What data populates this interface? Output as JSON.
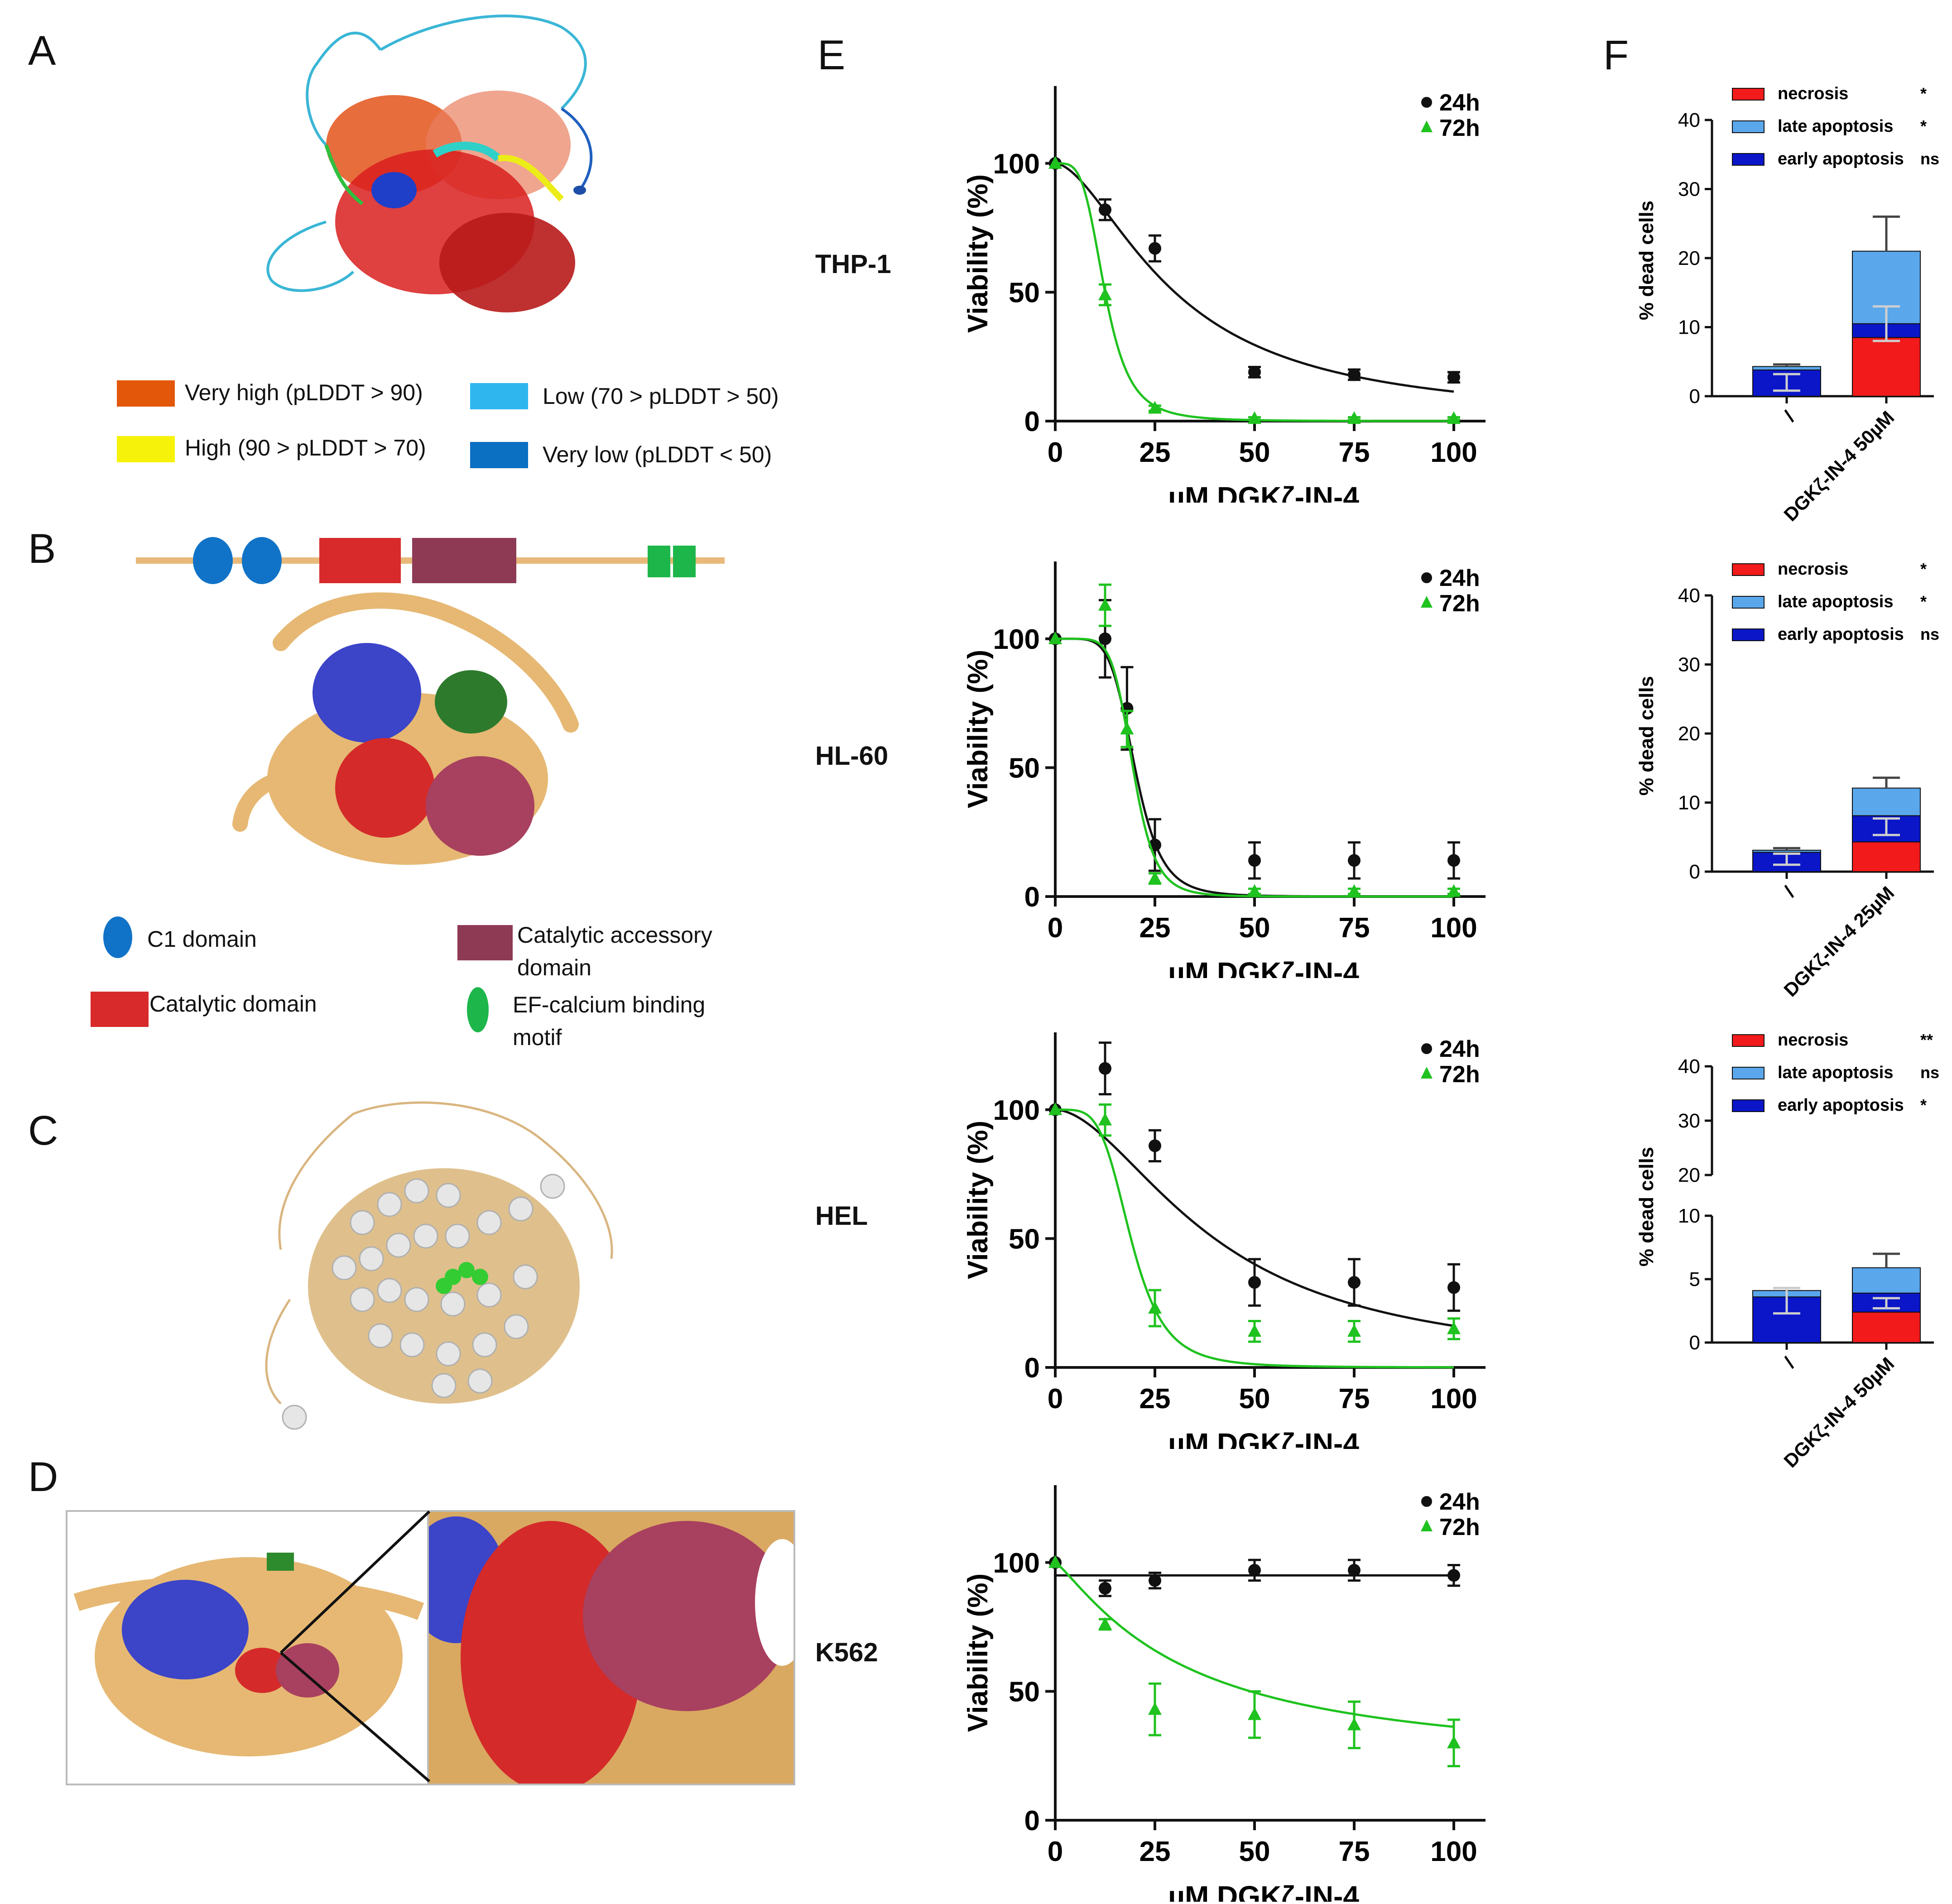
{
  "panels": {
    "A": "A",
    "B": "B",
    "C": "C",
    "D": "D",
    "E": "E",
    "F": "F"
  },
  "plddt_legend": [
    {
      "label": "Very high (pLDDT > 90)",
      "color": "#e2570a"
    },
    {
      "label": "High (90 > pLDDT > 70)",
      "color": "#f7f20a"
    },
    {
      "label": "Low (70 > pLDDT > 50)",
      "color": "#2fb6ef"
    },
    {
      "label": "Very low (pLDDT < 50)",
      "color": "#0b6fc2"
    }
  ],
  "domain_legend": [
    {
      "label": "C1 domain",
      "color": "#1173c7",
      "shape": "ellipse"
    },
    {
      "label": "Catalytic domain",
      "color": "#d82a2a",
      "shape": "rect"
    },
    {
      "label": "Catalytic accessory domain",
      "line1": "Catalytic accessory",
      "line2": "domain",
      "color": "#8e3a55",
      "shape": "rect"
    },
    {
      "label": "EF-calcium binding motif",
      "line1": "EF-calcium binding",
      "line2": "motif",
      "color": "#1db64a",
      "shape": "ellipse"
    }
  ],
  "colors": {
    "series_24h": "#111111",
    "series_72h": "#1fc21f",
    "necrosis": "#f21a1a",
    "late_apoptosis": "#5aa7ec",
    "early_apoptosis": "#0a16c8",
    "tan": "#e6b873",
    "blue_domain": "#3c44c8",
    "red_domain": "#d42a2a",
    "maroon_domain": "#a8405f",
    "green_domain": "#2d8a2d"
  },
  "viability_axis": {
    "ylabel": "Viability (%)",
    "xlabel": "µM DGKζ-IN-4",
    "xticks": [
      "0",
      "25",
      "50",
      "75",
      "100"
    ],
    "yticks": [
      "0",
      "50",
      "100"
    ]
  },
  "chart_data": [
    {
      "type": "line",
      "cell_line": "THP-1",
      "xlabel": "µM DGKζ-IN-4",
      "ylabel": "Viability (%)",
      "xlim": [
        0,
        100
      ],
      "ylim": [
        0,
        130
      ],
      "series": [
        {
          "name": "24h",
          "marker": "circle",
          "x": [
            0,
            12.5,
            25,
            50,
            75,
            100
          ],
          "y": [
            100,
            82,
            67,
            19,
            18,
            17
          ],
          "err": [
            0,
            4,
            5,
            2,
            2,
            2
          ],
          "curve": {
            "ic50": 30,
            "hill": 1.7,
            "bottom": 0
          }
        },
        {
          "name": "72h",
          "marker": "triangle",
          "x": [
            0,
            12.5,
            25,
            50,
            75,
            100
          ],
          "y": [
            100,
            49,
            5,
            1,
            1,
            1
          ],
          "err": [
            0,
            4,
            1,
            0.5,
            0.5,
            0.5
          ],
          "curve": {
            "ic50": 12.5,
            "hill": 4,
            "bottom": 0
          }
        }
      ]
    },
    {
      "type": "line",
      "cell_line": "HL-60",
      "xlabel": "µM DGKζ-IN-4",
      "ylabel": "Viability (%)",
      "xlim": [
        0,
        100
      ],
      "ylim": [
        0,
        130
      ],
      "series": [
        {
          "name": "24h",
          "marker": "circle",
          "x": [
            0,
            12.5,
            18,
            25,
            50,
            75,
            100
          ],
          "y": [
            100,
            100,
            73,
            20,
            14,
            14,
            14
          ],
          "err": [
            0,
            15,
            16,
            10,
            7,
            7,
            7
          ],
          "curve": {
            "ic50": 20,
            "hill": 6,
            "bottom": 0
          }
        },
        {
          "name": "72h",
          "marker": "triangle",
          "x": [
            0,
            12.5,
            18,
            25,
            50,
            75,
            100
          ],
          "y": [
            100,
            113,
            65,
            7,
            2,
            2,
            2
          ],
          "err": [
            0,
            8,
            7,
            2,
            1,
            1,
            1
          ],
          "curve": {
            "ic50": 19.5,
            "hill": 7,
            "bottom": 0
          }
        }
      ]
    },
    {
      "type": "line",
      "cell_line": "HEL",
      "xlabel": "µM DGKζ-IN-4",
      "ylabel": "Viability (%)",
      "xlim": [
        0,
        100
      ],
      "ylim": [
        0,
        130
      ],
      "series": [
        {
          "name": "24h",
          "marker": "circle",
          "x": [
            0,
            12.5,
            25,
            50,
            75,
            100
          ],
          "y": [
            100,
            116,
            86,
            33,
            33,
            31
          ],
          "err": [
            0,
            10,
            6,
            9,
            9,
            9
          ],
          "curve": {
            "ic50": 40,
            "hill": 1.8,
            "bottom": 0
          }
        },
        {
          "name": "72h",
          "marker": "triangle",
          "x": [
            0,
            12.5,
            25,
            50,
            75,
            100
          ],
          "y": [
            100,
            96,
            23,
            14,
            14,
            15
          ],
          "err": [
            0,
            6,
            7,
            4,
            4,
            4
          ],
          "curve": {
            "ic50": 19,
            "hill": 4.5,
            "bottom": 0
          }
        }
      ]
    },
    {
      "type": "line",
      "cell_line": "K562",
      "xlabel": "µM DGKζ-IN-4",
      "ylabel": "Viability (%)",
      "xlim": [
        0,
        100
      ],
      "ylim": [
        0,
        130
      ],
      "series": [
        {
          "name": "24h",
          "marker": "circle",
          "x": [
            0,
            12.5,
            25,
            50,
            75,
            100
          ],
          "y": [
            100,
            90,
            93,
            97,
            97,
            95
          ],
          "err": [
            0,
            3,
            3,
            4,
            4,
            4
          ],
          "curve": {
            "flat": 95
          }
        },
        {
          "name": "72h",
          "marker": "triangle",
          "x": [
            0,
            12.5,
            25,
            50,
            75,
            100
          ],
          "y": [
            100,
            76,
            43,
            41,
            37,
            30
          ],
          "err": [
            0,
            2,
            10,
            9,
            9,
            9
          ],
          "curve": {
            "ic50": 32,
            "hill": 1.2,
            "bottom": 20
          }
        }
      ]
    },
    {
      "type": "bar",
      "stacked": true,
      "ylabel": "% dead cells",
      "ylim": [
        0,
        40
      ],
      "yticks": [
        "0",
        "10",
        "20",
        "30",
        "40"
      ],
      "categories": [
        "/",
        "DGKζ-IN-4 50µM"
      ],
      "legend": [
        {
          "name": "necrosis",
          "sig": "*"
        },
        {
          "name": "late apoptosis",
          "sig": "*"
        },
        {
          "name": "early apoptosis",
          "sig": "ns"
        }
      ],
      "series": [
        {
          "name": "necrosis",
          "values": [
            0,
            8.5
          ]
        },
        {
          "name": "early apoptosis",
          "values": [
            3.8,
            2
          ]
        },
        {
          "name": "late apoptosis",
          "values": [
            0.5,
            10.5
          ]
        }
      ],
      "total_err": [
        0.3,
        5
      ],
      "inner_err": [
        {
          "y": 2,
          "e": 1.2
        },
        {
          "y": 10.5,
          "e": 2.5
        }
      ]
    },
    {
      "type": "bar",
      "stacked": true,
      "ylabel": "% dead cells",
      "ylim": [
        0,
        40
      ],
      "yticks": [
        "0",
        "10",
        "20",
        "30",
        "40"
      ],
      "categories": [
        "/",
        "DGKζ-IN-4 25µM"
      ],
      "legend": [
        {
          "name": "necrosis",
          "sig": "*"
        },
        {
          "name": "late apoptosis",
          "sig": "*"
        },
        {
          "name": "early apoptosis",
          "sig": "ns"
        }
      ],
      "series": [
        {
          "name": "necrosis",
          "values": [
            0,
            4.3
          ]
        },
        {
          "name": "early apoptosis",
          "values": [
            2.8,
            3.8
          ]
        },
        {
          "name": "late apoptosis",
          "values": [
            0.3,
            4
          ]
        }
      ],
      "total_err": [
        0.3,
        1.5
      ],
      "inner_err": [
        {
          "y": 1.8,
          "e": 0.8
        },
        {
          "y": 6.5,
          "e": 1.2
        }
      ]
    },
    {
      "type": "bar",
      "stacked": true,
      "broken_axis": true,
      "ylabel": "% dead cells",
      "ylim_lower": [
        0,
        10
      ],
      "ylim_upper": [
        20,
        40
      ],
      "yticks_lower": [
        "0",
        "5",
        "10"
      ],
      "yticks_upper": [
        "20",
        "30",
        "40"
      ],
      "categories": [
        "/",
        "DGKζ-IN-4 50µM"
      ],
      "legend": [
        {
          "name": "necrosis",
          "sig": "**"
        },
        {
          "name": "late apoptosis",
          "sig": "ns"
        },
        {
          "name": "early apoptosis",
          "sig": "*"
        }
      ],
      "series": [
        {
          "name": "necrosis",
          "values": [
            0,
            2.4
          ]
        },
        {
          "name": "early apoptosis",
          "values": [
            3.6,
            1.5
          ]
        },
        {
          "name": "late apoptosis",
          "values": [
            0.5,
            2
          ]
        }
      ],
      "total_err": [
        0.2,
        1.1
      ],
      "inner_err": [
        {
          "y": 3.3,
          "e": 1
        },
        {
          "y": 3.1,
          "e": 0.4
        }
      ]
    }
  ]
}
